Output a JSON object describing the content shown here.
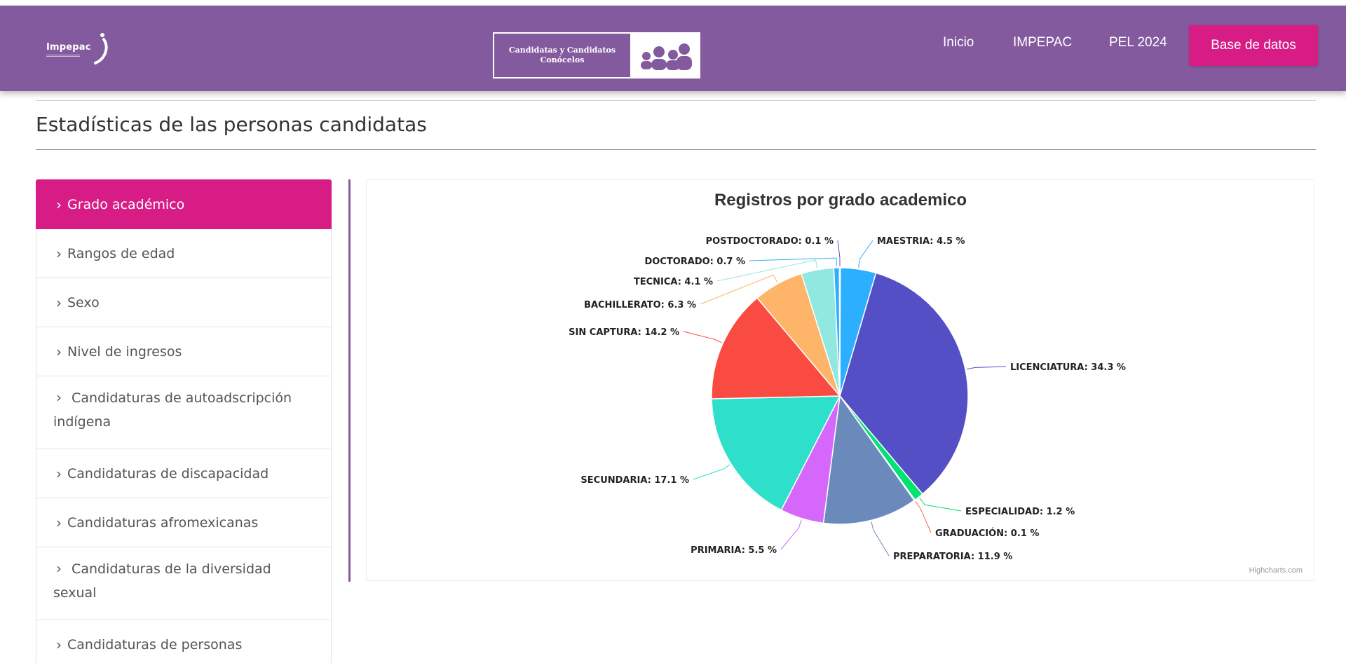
{
  "navbar": {
    "brand": "Impepac",
    "center_logo": {
      "line1": "Candidatas y Candidatos",
      "line2": "Conócelos"
    },
    "links": [
      {
        "label": "Inicio"
      },
      {
        "label": "IMPEPAC"
      },
      {
        "label": "PEL 2024"
      }
    ],
    "cta": "Base de datos",
    "colors": {
      "bar": "#845a9e",
      "accent": "#d71c86"
    }
  },
  "page": {
    "title": "Estadísticas de las personas candidatas"
  },
  "sidebar": {
    "items": [
      {
        "label": "Grado académico",
        "active": true
      },
      {
        "label": "Rangos de edad"
      },
      {
        "label": "Sexo"
      },
      {
        "label": "Nivel de ingresos"
      },
      {
        "label": "Candidaturas de autoadscripción",
        "label2": "indígena"
      },
      {
        "label": "Candidaturas de discapacidad"
      },
      {
        "label": "Candidaturas afromexicanas"
      },
      {
        "label": "Candidaturas de la diversidad",
        "label2": "sexual"
      },
      {
        "label": "Candidaturas de personas"
      }
    ]
  },
  "chart": {
    "credits": "Highcharts.com"
  },
  "chart_data": {
    "type": "pie",
    "title": "Registros por grado academico",
    "slices": [
      {
        "name": "MAESTRIA",
        "value": 4.5,
        "label": "MAESTRIA: 4.5 %",
        "color": "#2caffe"
      },
      {
        "name": "LICENCIATURA",
        "value": 34.3,
        "label": "LICENCIATURA: 34.3 %",
        "color": "#544fc5"
      },
      {
        "name": "ESPECIALIDAD",
        "value": 1.2,
        "label": "ESPECIALIDAD: 1.2 %",
        "color": "#00e272"
      },
      {
        "name": "GRADUACIÓN",
        "value": 0.1,
        "label": "GRADUACIÓN: 0.1 %",
        "color": "#fe6a35"
      },
      {
        "name": "PREPARATORIA",
        "value": 11.9,
        "label": "PREPARATORIA: 11.9 %",
        "color": "#6b8abc"
      },
      {
        "name": "PRIMARIA",
        "value": 5.5,
        "label": "PRIMARIA: 5.5 %",
        "color": "#d568fb"
      },
      {
        "name": "SECUNDARIA",
        "value": 17.1,
        "label": "SECUNDARIA: 17.1 %",
        "color": "#2ee0ca"
      },
      {
        "name": "SIN CAPTURA",
        "value": 14.2,
        "label": "SIN CAPTURA: 14.2 %",
        "color": "#fa4b42"
      },
      {
        "name": "BACHILLERATO",
        "value": 6.3,
        "label": "BACHILLERATO: 6.3 %",
        "color": "#feb56a"
      },
      {
        "name": "TECNICA",
        "value": 4.1,
        "label": "TECNICA: 4.1 %",
        "color": "#91e8e1"
      },
      {
        "name": "DOCTORADO",
        "value": 0.7,
        "label": "DOCTORADO: 0.7 %",
        "color": "#2caffe"
      },
      {
        "name": "POSTDOCTORADO",
        "value": 0.1,
        "label": "POSTDOCTORADO: 0.1 %",
        "color": "#544fc5"
      }
    ]
  }
}
